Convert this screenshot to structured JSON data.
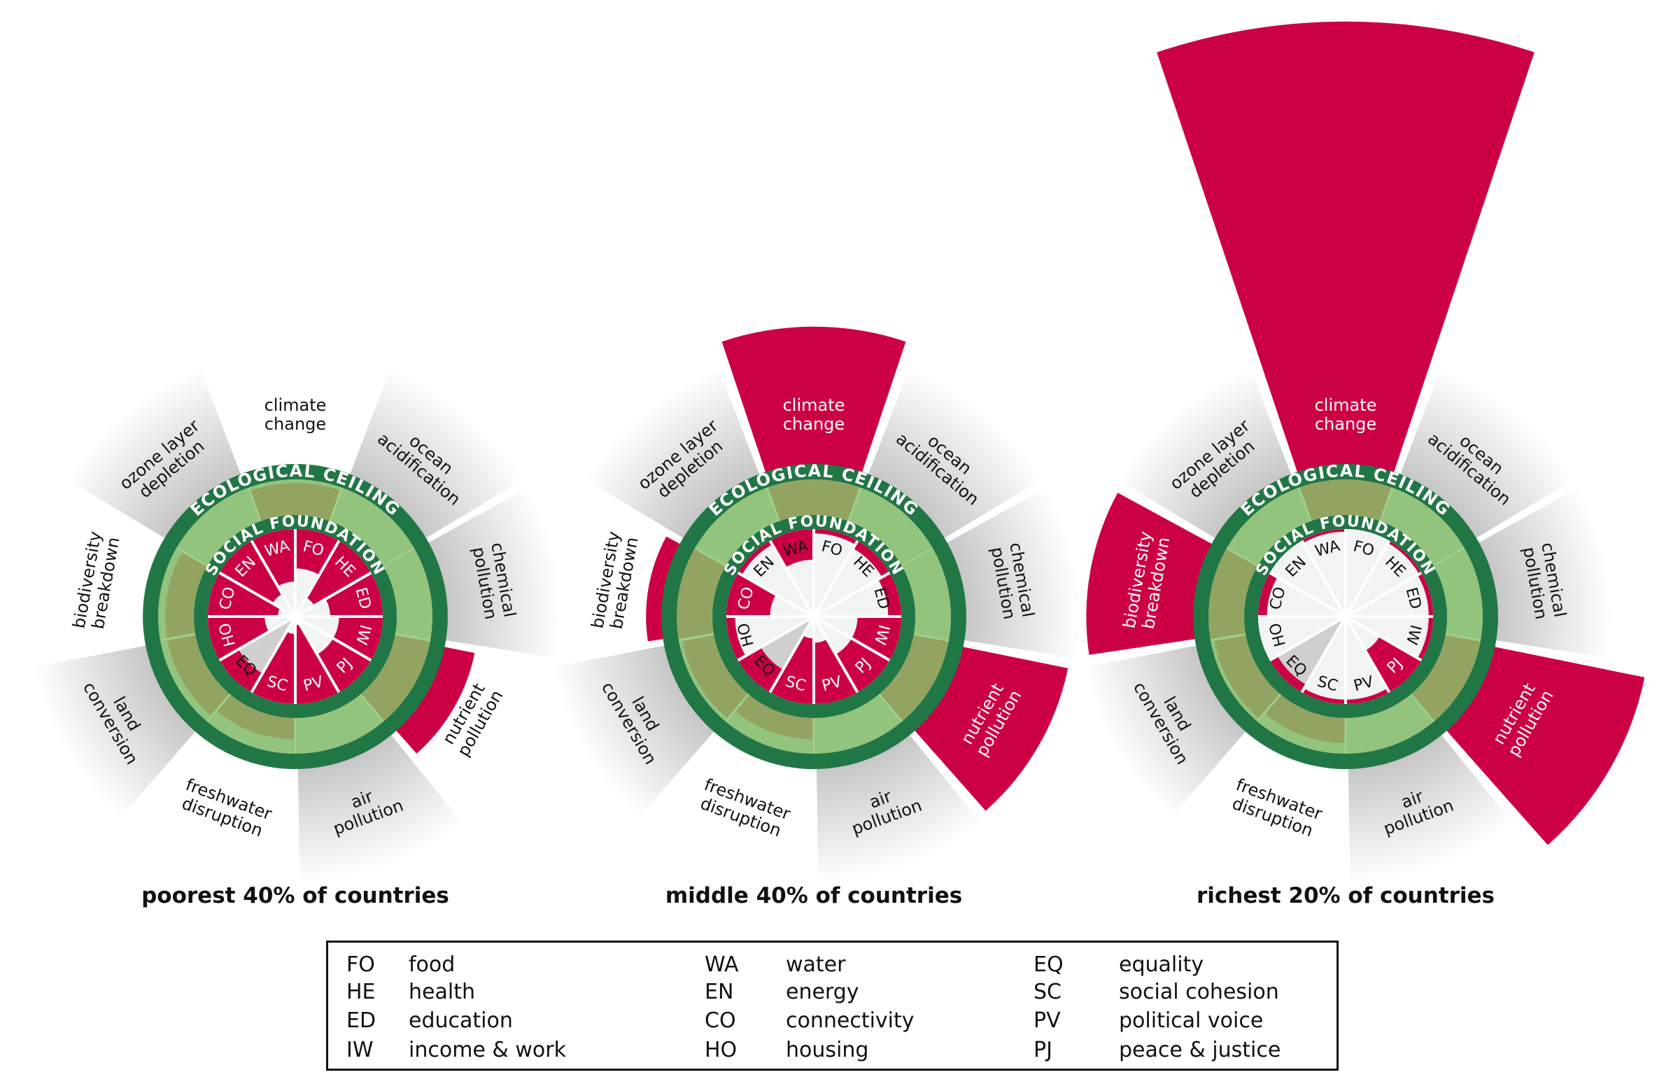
{
  "ring_labels": {
    "ceiling": "ECOLOGICAL CEILING",
    "foundation": "SOCIAL FOUNDATION"
  },
  "eco_dimensions": [
    {
      "key": "climate",
      "lines": [
        "climate",
        "change"
      ],
      "shaded": false
    },
    {
      "key": "ocean",
      "lines": [
        "ocean",
        "acidification"
      ],
      "shaded": true
    },
    {
      "key": "chemical",
      "lines": [
        "chemical",
        "pollution"
      ],
      "shaded": true
    },
    {
      "key": "nutrient",
      "lines": [
        "nutrient",
        "pollution"
      ],
      "shaded": false
    },
    {
      "key": "air",
      "lines": [
        "air",
        "pollution"
      ],
      "shaded": true
    },
    {
      "key": "freshwater",
      "lines": [
        "freshwater",
        "disruption"
      ],
      "shaded": false
    },
    {
      "key": "land",
      "lines": [
        "land",
        "conversion"
      ],
      "shaded": true
    },
    {
      "key": "biodiversity",
      "lines": [
        "biodiversity",
        "breakdown"
      ],
      "shaded": false
    },
    {
      "key": "ozone",
      "lines": [
        "ozone layer",
        "depletion"
      ],
      "shaded": true
    }
  ],
  "social_codes": [
    "FO",
    "HE",
    "ED",
    "IW",
    "PJ",
    "PV",
    "SC",
    "EQ",
    "HO",
    "CO",
    "EN",
    "WA"
  ],
  "panels": [
    {
      "title": "poorest 40% of countries",
      "eco_use_vs_ceiling": [
        0.9,
        0,
        0,
        1.2,
        0,
        0.6,
        0.8,
        0.8,
        0
      ],
      "social_shortfall": [
        0.45,
        0.75,
        0.6,
        0.5,
        0.5,
        0.9,
        0.8,
        0.25,
        0.65,
        0.8,
        0.7,
        0.6
      ]
    },
    {
      "title": "middle 40% of countries",
      "eco_use_vs_ceiling": [
        1.9,
        0,
        0,
        1.7,
        0,
        0.6,
        0.9,
        1.1,
        0
      ],
      "social_shortfall": [
        0.05,
        0.1,
        0.15,
        0.5,
        0.5,
        0.7,
        0.75,
        0.3,
        0.1,
        0.5,
        0.05,
        0.35
      ]
    },
    {
      "title": "richest 20% of countries",
      "eco_use_vs_ceiling": [
        3.9,
        0,
        0,
        2.0,
        0,
        0.7,
        0.9,
        1.7,
        0
      ],
      "social_shortfall": [
        0,
        0.03,
        0.05,
        0.05,
        0.55,
        0.05,
        0.05,
        0.1,
        0,
        0.1,
        0,
        0.03
      ]
    }
  ],
  "legend": [
    [
      {
        "code": "FO",
        "name": "food"
      },
      {
        "code": "HE",
        "name": "health"
      },
      {
        "code": "ED",
        "name": "education"
      },
      {
        "code": "IW",
        "name": "income & work"
      }
    ],
    [
      {
        "code": "WA",
        "name": "water"
      },
      {
        "code": "EN",
        "name": "energy"
      },
      {
        "code": "CO",
        "name": "connectivity"
      },
      {
        "code": "HO",
        "name": "housing"
      }
    ],
    [
      {
        "code": "EQ",
        "name": "equality"
      },
      {
        "code": "SC",
        "name": "social cohesion"
      },
      {
        "code": "PV",
        "name": "political voice"
      },
      {
        "code": "PJ",
        "name": "peace & justice"
      }
    ]
  ],
  "colors": {
    "dark_green": "#217645",
    "light_green": "#93c47d",
    "olive": "#93a462",
    "red": "#cc0044",
    "core": "#f2f3f5",
    "shade": "#c4c4c4"
  }
}
